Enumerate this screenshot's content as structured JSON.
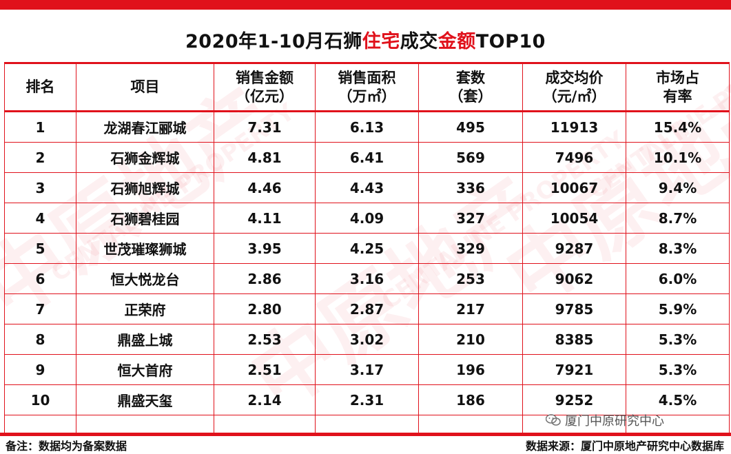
{
  "title": {
    "part1": "2020年1-10月石狮",
    "part2": "住宅",
    "part3": "成交",
    "part4": "金额",
    "part5": "TOP10"
  },
  "headers": {
    "rank": "排名",
    "project": "项目",
    "amount_line1": "销售金额",
    "amount_line2": "（亿元）",
    "area_line1": "销售面积",
    "area_line2": "（万㎡）",
    "units_line1": "套数",
    "units_line2": "（套）",
    "price_line1": "成交均价",
    "price_line2": "（元/㎡）",
    "share_line1": "市场占",
    "share_line2": "有率"
  },
  "rows": [
    {
      "rank": "1",
      "project": "龙湖春江郦城",
      "amount": "7.31",
      "area": "6.13",
      "units": "495",
      "price": "11913",
      "share": "15.4%"
    },
    {
      "rank": "2",
      "project": "石狮金辉城",
      "amount": "4.81",
      "area": "6.41",
      "units": "569",
      "price": "7496",
      "share": "10.1%"
    },
    {
      "rank": "3",
      "project": "石狮旭辉城",
      "amount": "4.46",
      "area": "4.43",
      "units": "336",
      "price": "10067",
      "share": "9.4%"
    },
    {
      "rank": "4",
      "project": "石狮碧桂园",
      "amount": "4.11",
      "area": "4.09",
      "units": "327",
      "price": "10054",
      "share": "8.7%"
    },
    {
      "rank": "5",
      "project": "世茂璀璨狮城",
      "amount": "3.95",
      "area": "4.25",
      "units": "329",
      "price": "9287",
      "share": "8.3%"
    },
    {
      "rank": "6",
      "project": "恒大悦龙台",
      "amount": "2.86",
      "area": "3.16",
      "units": "253",
      "price": "9062",
      "share": "6.0%"
    },
    {
      "rank": "7",
      "project": "正荣府",
      "amount": "2.80",
      "area": "2.87",
      "units": "217",
      "price": "9785",
      "share": "5.9%"
    },
    {
      "rank": "8",
      "project": "鼎盛上城",
      "amount": "2.53",
      "area": "3.02",
      "units": "210",
      "price": "8385",
      "share": "5.3%"
    },
    {
      "rank": "9",
      "project": "恒大首府",
      "amount": "2.51",
      "area": "3.17",
      "units": "196",
      "price": "7921",
      "share": "5.3%"
    },
    {
      "rank": "10",
      "project": "鼎盛天玺",
      "amount": "2.14",
      "area": "2.31",
      "units": "186",
      "price": "9252",
      "share": "4.5%"
    }
  ],
  "footer": {
    "note": "备注：数据均为备案数据",
    "source": "数据来源：厦门中原地产研究中心数据库",
    "wechat_label": "厦门中原研究中心"
  },
  "watermark": {
    "cn": "中原地产",
    "en": "CENTALINE PROPERTY"
  },
  "colors": {
    "accent": "#e0111b"
  }
}
